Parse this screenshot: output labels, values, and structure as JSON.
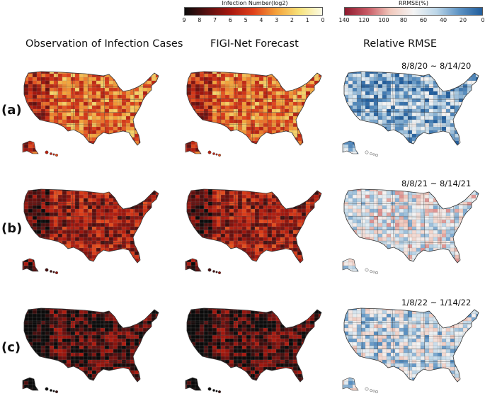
{
  "colorbars": {
    "infection": {
      "title": "Infection Number(log2)",
      "ticks": [
        "9",
        "8",
        "7",
        "6",
        "5",
        "4",
        "3",
        "2",
        "1",
        "0"
      ],
      "colors": [
        "#0b0b0b",
        "#5a1010",
        "#a8180f",
        "#e0401a",
        "#f4a23a",
        "#f7e27a",
        "#fbfbe4"
      ]
    },
    "rrmse": {
      "title": "RRMSE(%)",
      "ticks": [
        "140",
        "120",
        "100",
        "80",
        "60",
        "40",
        "20",
        "0"
      ],
      "colors": [
        "#8e1a2e",
        "#c85a64",
        "#f1c9bd",
        "#f4f4f4",
        "#bcd6e8",
        "#5d93c4",
        "#215d9c"
      ]
    }
  },
  "columns": [
    {
      "header": "Observation of Infection Cases"
    },
    {
      "header": "FIGI-Net Forecast"
    },
    {
      "header": "Relative RMSE"
    }
  ],
  "rows": [
    {
      "label": "(a)",
      "date": "8/8/20 ~ 8/14/20",
      "level": 0.42,
      "rmse_bias": -0.55
    },
    {
      "label": "(b)",
      "date": "8/8/21 ~ 8/14/21",
      "level": 0.68,
      "rmse_bias": 0.1
    },
    {
      "label": "(c)",
      "date": "1/8/22 ~ 1/14/22",
      "level": 0.86,
      "rmse_bias": -0.1
    }
  ],
  "colors": {
    "state_border": "#3a3a3a",
    "county_border": "#8a8a8a"
  }
}
